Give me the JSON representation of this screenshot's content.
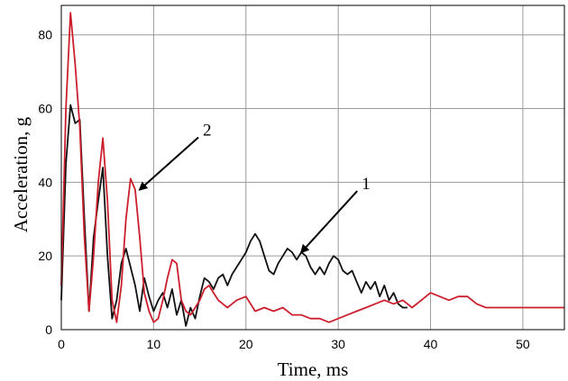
{
  "chart_data": {
    "type": "line",
    "xlabel": "Time, ms",
    "ylabel": "Acceleration, g",
    "xlim": [
      0,
      54.5
    ],
    "ylim": [
      0,
      88
    ],
    "xticks": [
      0,
      10,
      20,
      30,
      40,
      50
    ],
    "yticks": [
      0,
      20,
      40,
      60,
      80
    ],
    "grid": true,
    "series": [
      {
        "label": "1",
        "color": "#111111",
        "x": [
          0,
          0.5,
          1,
          1.5,
          2,
          2.5,
          3,
          3.5,
          4,
          4.5,
          5,
          5.5,
          6,
          6.5,
          7,
          7.5,
          8,
          8.5,
          9,
          9.5,
          10,
          10.5,
          11,
          11.5,
          12,
          12.5,
          13,
          13.5,
          14,
          14.5,
          15,
          15.5,
          16,
          16.5,
          17,
          17.5,
          18,
          18.5,
          19,
          19.5,
          20,
          20.5,
          21,
          21.5,
          22,
          22.5,
          23,
          23.5,
          24,
          24.5,
          25,
          25.5,
          26,
          26.5,
          27,
          27.5,
          28,
          28.5,
          29,
          29.5,
          30,
          30.5,
          31,
          31.5,
          32,
          32.5,
          33,
          33.5,
          34,
          34.5,
          35,
          35.5,
          36,
          36.5,
          37,
          37.5
        ],
        "y": [
          8,
          45,
          61,
          56,
          57,
          30,
          5,
          25,
          35,
          44,
          20,
          3,
          8,
          18,
          22,
          17,
          12,
          5,
          14,
          9,
          5,
          8,
          10,
          6,
          11,
          4,
          8,
          1,
          6,
          3,
          9,
          14,
          13,
          11,
          14,
          15,
          12,
          15,
          17,
          19,
          21,
          24,
          26,
          24,
          20,
          16,
          15,
          18,
          20,
          22,
          21,
          19,
          21,
          20,
          17,
          15,
          17,
          15,
          18,
          20,
          19,
          16,
          15,
          16,
          13,
          10,
          13,
          11,
          13,
          9,
          12,
          8,
          10,
          7,
          6,
          6
        ]
      },
      {
        "label": "2",
        "color": "#cc1f2e",
        "x": [
          0,
          0.5,
          1,
          1.5,
          2,
          2.5,
          3,
          3.5,
          4,
          4.5,
          5,
          5.5,
          6,
          6.5,
          7,
          7.5,
          8,
          8.5,
          9,
          9.5,
          10,
          10.5,
          11,
          11.5,
          12,
          12.5,
          13,
          13.5,
          14,
          14.5,
          15,
          15.5,
          16,
          16.5,
          17,
          17.5,
          18,
          19,
          20,
          21,
          22,
          23,
          24,
          25,
          26,
          27,
          28,
          29,
          30,
          31,
          32,
          33,
          34,
          35,
          36,
          37,
          38,
          39,
          40,
          41,
          42,
          43,
          44,
          45,
          46,
          47,
          48,
          49,
          50,
          51,
          52,
          53,
          54,
          54.5
        ],
        "y": [
          12,
          60,
          86,
          72,
          55,
          25,
          5,
          20,
          40,
          52,
          35,
          8,
          2,
          12,
          30,
          41,
          38,
          25,
          10,
          5,
          2,
          3,
          8,
          14,
          19,
          18,
          8,
          5,
          4,
          6,
          8,
          11,
          12,
          10,
          8,
          7,
          6,
          8,
          9,
          5,
          6,
          5,
          6,
          4,
          4,
          3,
          3,
          2,
          3,
          4,
          5,
          6,
          7,
          8,
          7,
          8,
          6,
          8,
          10,
          9,
          8,
          9,
          9,
          7,
          6,
          6,
          6,
          6,
          6,
          6,
          6,
          6,
          6,
          6
        ]
      }
    ],
    "annotations": [
      {
        "text": "1",
        "target": [
          26,
          21
        ]
      },
      {
        "text": "2",
        "target": [
          8.5,
          38
        ]
      }
    ]
  }
}
